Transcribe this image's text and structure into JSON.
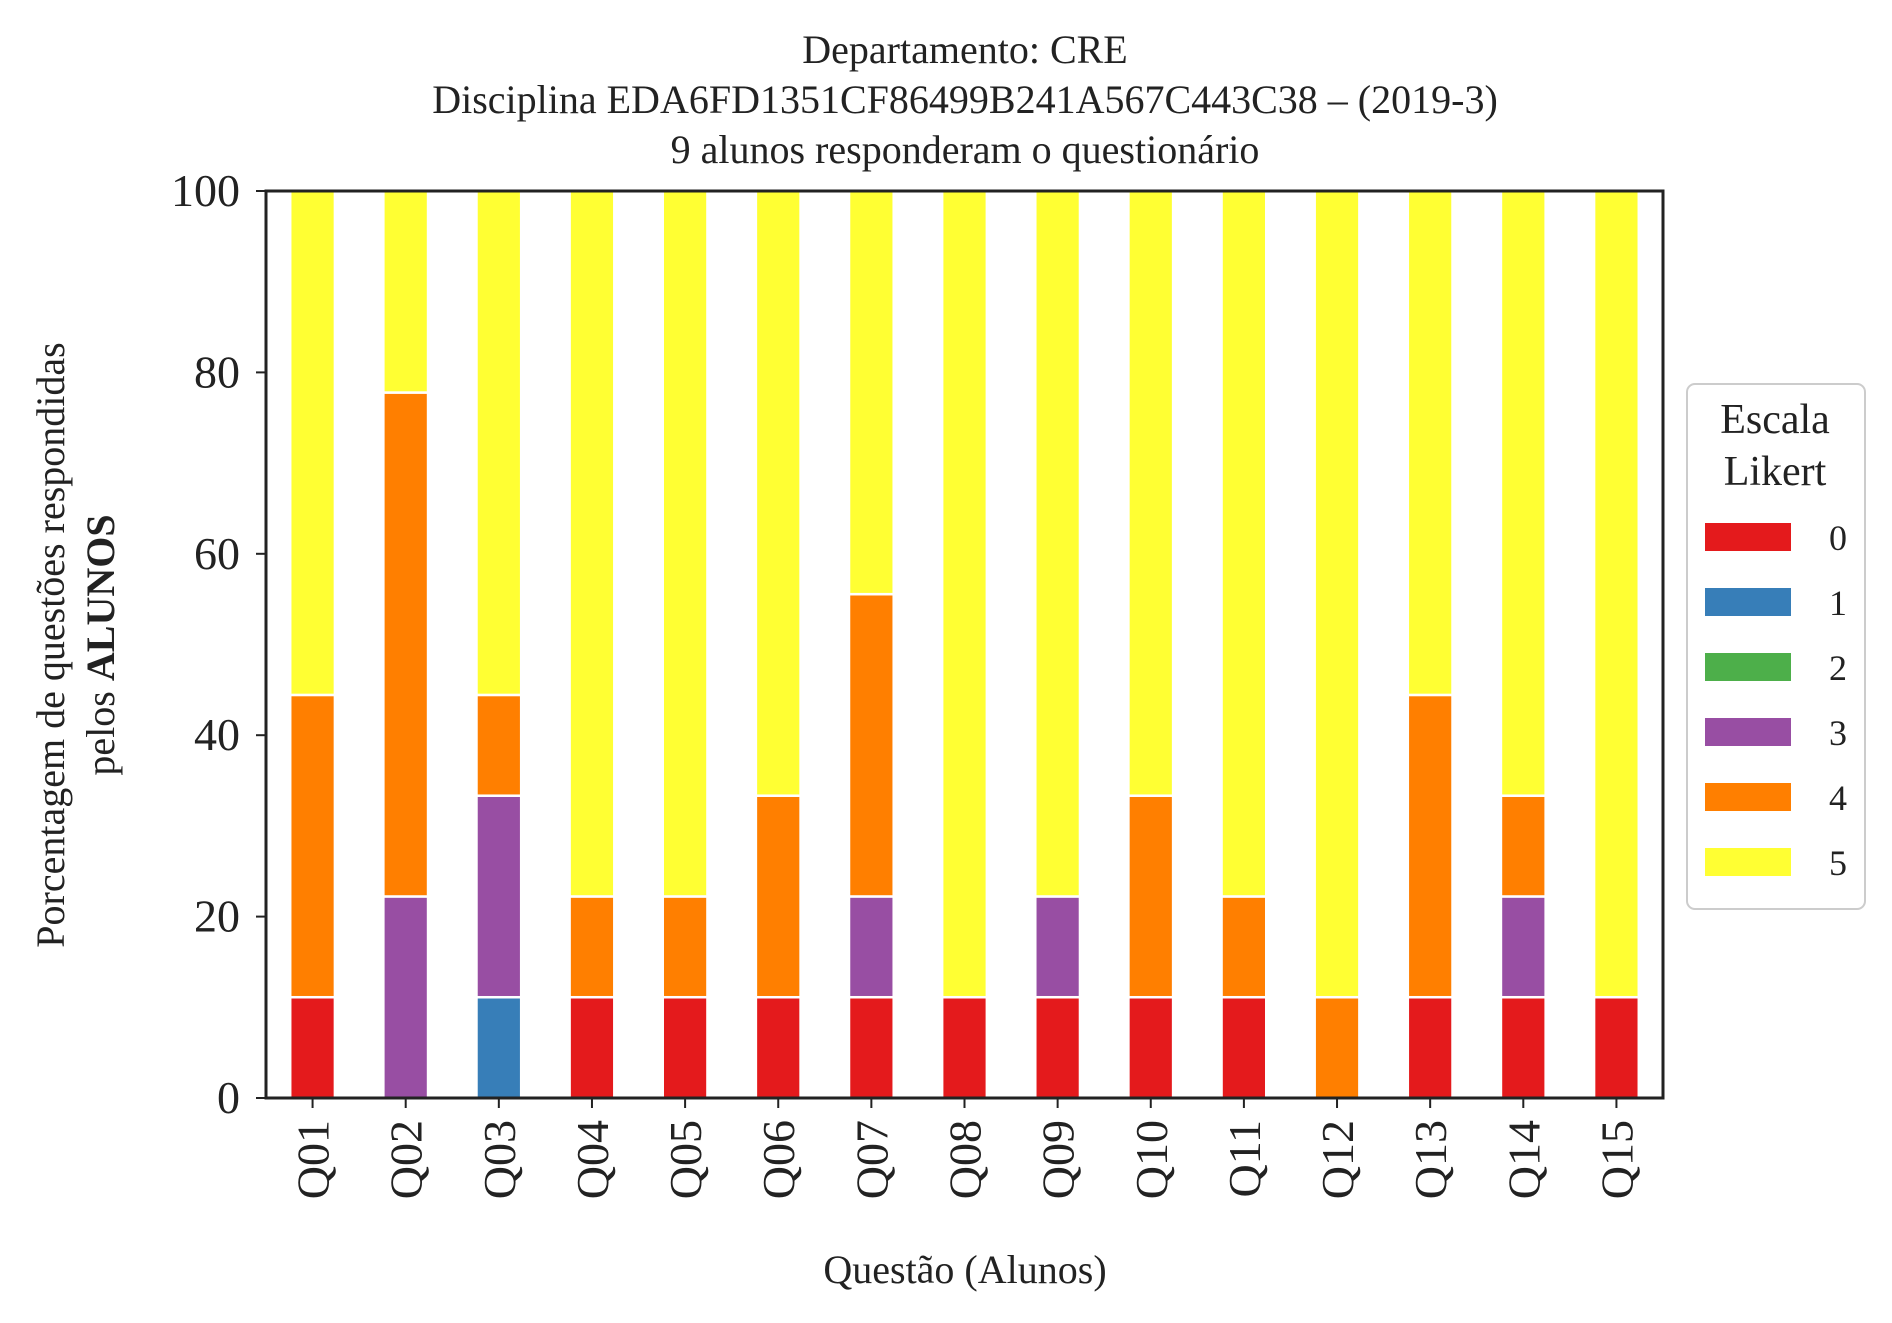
{
  "chart_data": {
    "type": "bar",
    "stacked": true,
    "title_lines": [
      "Departamento: CRE",
      "Disciplina EDA6FD1351CF86499B241A567C443C38 – (2019-3)",
      "9 alunos responderam o questionário"
    ],
    "xlabel": "Questão (Alunos)",
    "ylabel_line1": "Porcentagem de questões respondidas",
    "ylabel_line2_prefix": "pelos ",
    "ylabel_line2_bold": "ALUNOS",
    "ylim": [
      0,
      100
    ],
    "yticks": [
      "0",
      "20",
      "40",
      "60",
      "80",
      "100"
    ],
    "grid": false,
    "legend": {
      "title_line1": "Escala",
      "title_line2": "Likert",
      "placement": "center-right-outside"
    },
    "categories": [
      "Q01",
      "Q02",
      "Q03",
      "Q04",
      "Q05",
      "Q06",
      "Q07",
      "Q08",
      "Q09",
      "Q10",
      "Q11",
      "Q12",
      "Q13",
      "Q14",
      "Q15"
    ],
    "series": [
      {
        "name": "0",
        "color": "#e41a1c",
        "values": [
          11.11,
          0,
          0,
          11.11,
          11.11,
          11.11,
          11.11,
          11.11,
          11.11,
          11.11,
          11.11,
          0,
          11.11,
          11.11,
          11.11
        ]
      },
      {
        "name": "1",
        "color": "#377eb8",
        "values": [
          0,
          0,
          11.11,
          0,
          0,
          0,
          0,
          0,
          0,
          0,
          0,
          0,
          0,
          0,
          0
        ]
      },
      {
        "name": "2",
        "color": "#4daf4a",
        "values": [
          0,
          0,
          0,
          0,
          0,
          0,
          0,
          0,
          0,
          0,
          0,
          0,
          0,
          0,
          0
        ]
      },
      {
        "name": "3",
        "color": "#984ea3",
        "values": [
          0,
          22.22,
          22.22,
          0,
          0,
          0,
          11.11,
          0,
          11.11,
          0,
          0,
          0,
          0,
          11.11,
          0
        ]
      },
      {
        "name": "4",
        "color": "#ff7f00",
        "values": [
          33.33,
          55.56,
          11.11,
          11.11,
          11.11,
          22.22,
          33.33,
          0,
          0,
          22.22,
          11.11,
          11.11,
          33.33,
          11.11,
          0
        ]
      },
      {
        "name": "5",
        "color": "#ffff33",
        "values": [
          55.56,
          22.22,
          55.56,
          77.78,
          77.78,
          66.67,
          44.44,
          88.89,
          77.78,
          66.67,
          77.78,
          88.89,
          55.56,
          66.67,
          88.89
        ]
      }
    ]
  }
}
